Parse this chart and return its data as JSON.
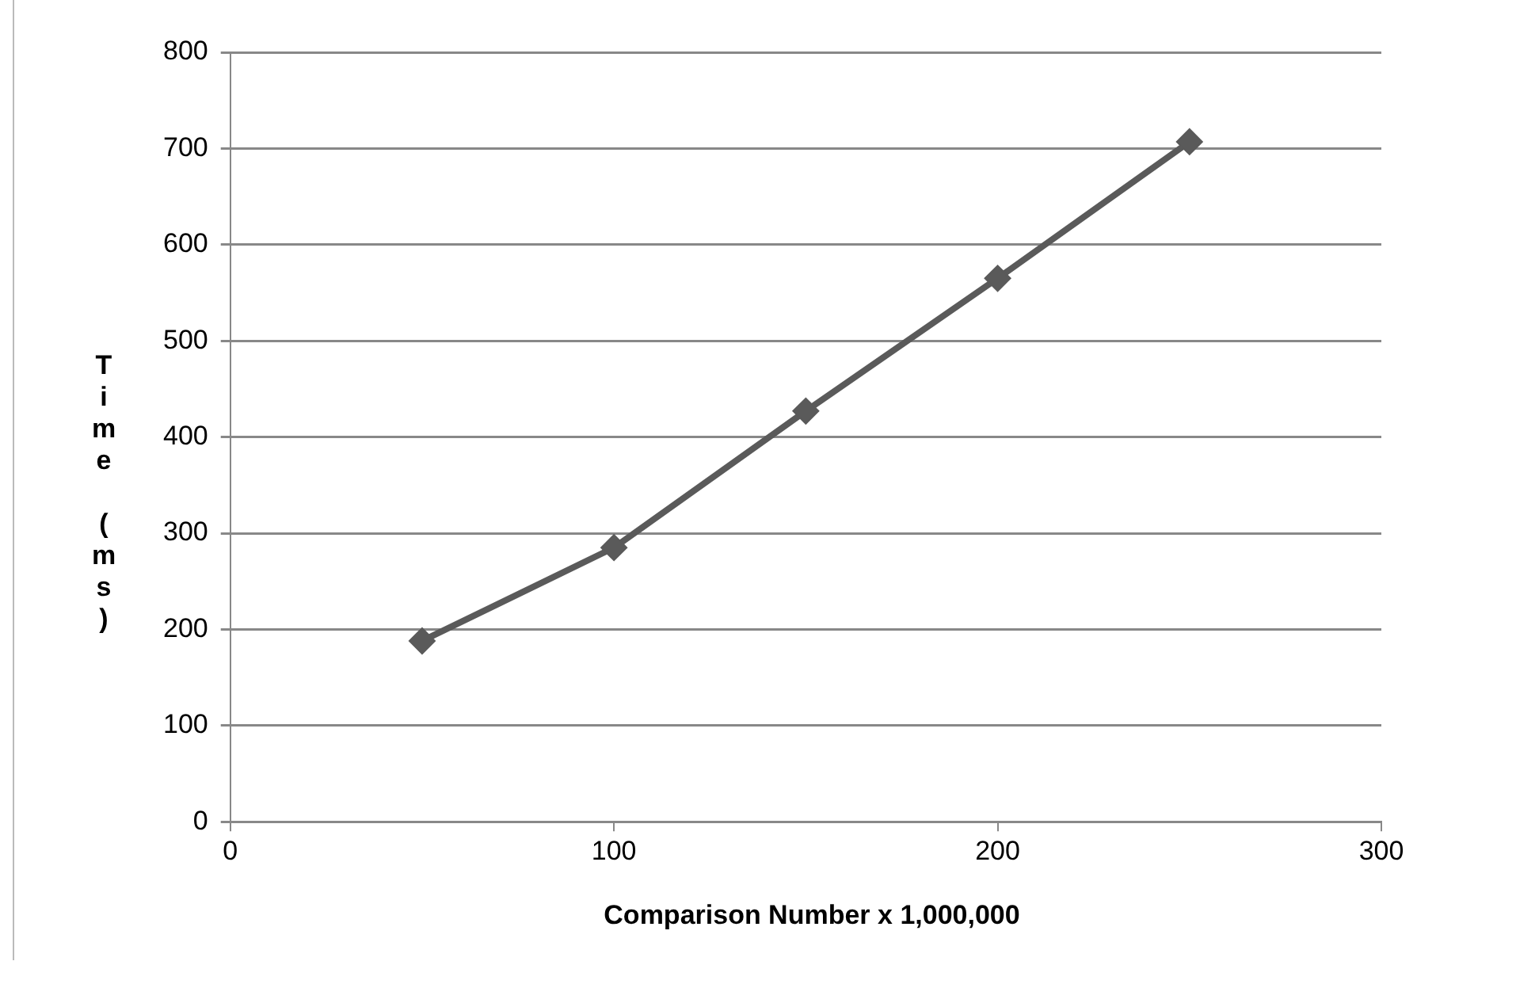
{
  "chart_data": {
    "type": "line",
    "xlabel": "Comparison Number x 1,000,000",
    "ylabel": "Time (ms)",
    "x": [
      50,
      100,
      150,
      200,
      250
    ],
    "series": [
      {
        "color": "#5a5a5a",
        "values": [
          188,
          285,
          427,
          565,
          707
        ]
      }
    ],
    "xlim": [
      0,
      300
    ],
    "xticks": [
      0,
      100,
      200,
      300
    ],
    "ylim": [
      0,
      800
    ],
    "yticks": [
      0,
      100,
      200,
      300,
      400,
      500,
      600,
      700,
      800
    ],
    "grid": "y",
    "marker": "diamond",
    "line_style": "solid",
    "legend": false
  }
}
